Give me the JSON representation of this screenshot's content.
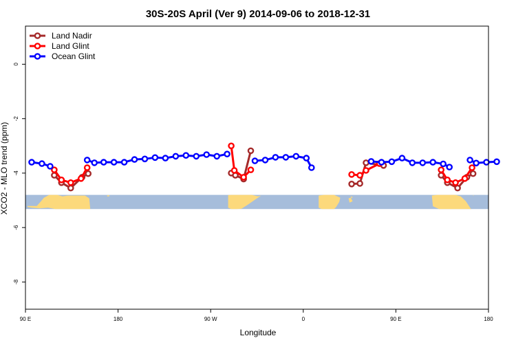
{
  "chart_data": {
    "type": "line",
    "title": "30S-20S April (Ver 9)   2014-09-06 to 2018-12-31",
    "xlabel": "Longitude",
    "ylabel": "XCO2 - MLO trend (ppm)",
    "xlim": [
      90,
      540
    ],
    "ylim": [
      -9.0,
      1.4
    ],
    "x_ticks": [
      {
        "value": 90,
        "label": "90 E"
      },
      {
        "value": 180,
        "label": "180"
      },
      {
        "value": 270,
        "label": "90 W"
      },
      {
        "value": 360,
        "label": "0"
      },
      {
        "value": 450,
        "label": "90 E"
      },
      {
        "value": 540,
        "label": "180"
      }
    ],
    "y_ticks": [
      {
        "value": 0,
        "label": "0"
      },
      {
        "value": -2,
        "label": "-2"
      },
      {
        "value": -4,
        "label": "-4"
      },
      {
        "value": -6,
        "label": "-6"
      },
      {
        "value": -8,
        "label": "-8"
      }
    ],
    "grid": false,
    "legend_position": "top-left",
    "land_band": {
      "y_top": -4.8,
      "y_bottom": -5.32,
      "ocean_color": "#a6bddb",
      "land_color": "#fcd97c"
    },
    "series": [
      {
        "name": "Land Nadir",
        "color": "#a52a2a",
        "segments": [
          [
            [
              118,
              -4.08
            ],
            [
              125,
              -4.35
            ],
            [
              134,
              -4.55
            ],
            [
              145,
              -4.15
            ],
            [
              151,
              -4.02
            ]
          ],
          [
            [
              290,
              -4.0
            ],
            [
              294,
              -4.08
            ],
            [
              302,
              -4.22
            ],
            [
              309,
              -3.18
            ]
          ],
          [
            [
              407,
              -4.4
            ],
            [
              415,
              -4.38
            ],
            [
              421,
              -3.62
            ],
            [
              438,
              -3.72
            ]
          ],
          [
            [
              494,
              -4.08
            ],
            [
              500,
              -4.35
            ],
            [
              510,
              -4.55
            ],
            [
              519,
              -4.15
            ],
            [
              525,
              -4.02
            ]
          ]
        ]
      },
      {
        "name": "Land Glint",
        "color": "#ff0000",
        "segments": [
          [
            [
              118,
              -3.88
            ],
            [
              125,
              -4.25
            ],
            [
              134,
              -4.35
            ],
            [
              144,
              -4.2
            ],
            [
              150,
              -3.8
            ]
          ],
          [
            [
              290,
              -3.0
            ],
            [
              293,
              -3.9
            ],
            [
              302,
              -4.15
            ],
            [
              309,
              -3.88
            ]
          ],
          [
            [
              407,
              -4.05
            ],
            [
              415,
              -4.08
            ],
            [
              421,
              -3.9
            ],
            [
              434,
              -3.65
            ]
          ],
          [
            [
              494,
              -3.88
            ],
            [
              500,
              -4.25
            ],
            [
              508,
              -4.35
            ],
            [
              517,
              -4.2
            ],
            [
              524,
              -3.8
            ]
          ]
        ]
      },
      {
        "name": "Ocean Glint",
        "color": "#0000ff",
        "segments": [
          [
            [
              96,
              -3.6
            ],
            [
              106,
              -3.65
            ],
            [
              114,
              -3.75
            ]
          ],
          [
            [
              150,
              -3.52
            ],
            [
              157,
              -3.62
            ],
            [
              166,
              -3.6
            ],
            [
              176,
              -3.6
            ],
            [
              186,
              -3.6
            ],
            [
              196,
              -3.5
            ],
            [
              206,
              -3.48
            ],
            [
              216,
              -3.43
            ],
            [
              226,
              -3.45
            ],
            [
              236,
              -3.38
            ],
            [
              246,
              -3.35
            ],
            [
              256,
              -3.38
            ],
            [
              266,
              -3.32
            ],
            [
              276,
              -3.38
            ],
            [
              286,
              -3.3
            ]
          ],
          [
            [
              313,
              -3.55
            ],
            [
              323,
              -3.52
            ],
            [
              333,
              -3.42
            ],
            [
              343,
              -3.42
            ],
            [
              353,
              -3.38
            ],
            [
              363,
              -3.45
            ],
            [
              368,
              -3.8
            ]
          ],
          [
            [
              426,
              -3.57
            ],
            [
              436,
              -3.6
            ],
            [
              446,
              -3.58
            ],
            [
              456,
              -3.45
            ],
            [
              466,
              -3.62
            ],
            [
              476,
              -3.62
            ],
            [
              486,
              -3.6
            ],
            [
              496,
              -3.66
            ],
            [
              502,
              -3.78
            ]
          ],
          [
            [
              522,
              -3.52
            ],
            [
              528,
              -3.63
            ],
            [
              538,
              -3.6
            ],
            [
              548,
              -3.58
            ]
          ]
        ]
      }
    ]
  }
}
